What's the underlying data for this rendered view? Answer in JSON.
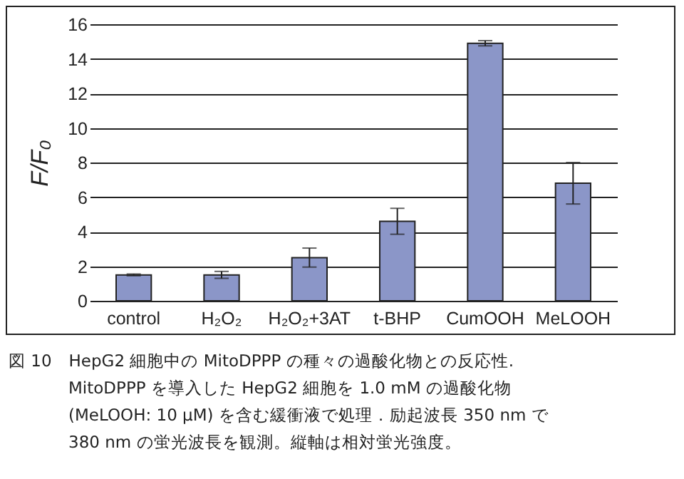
{
  "chart_data": {
    "type": "bar",
    "categories": [
      "control",
      "H₂O₂",
      "H₂O₂+3AT",
      "t-BHP",
      "CumOOH",
      "MeLOOH"
    ],
    "values": [
      1.5,
      1.5,
      2.5,
      4.6,
      14.9,
      6.8
    ],
    "errors": [
      0.05,
      0.2,
      0.55,
      0.75,
      0.15,
      1.2
    ],
    "color": "#8b96c8",
    "ylabel": "F/F₀",
    "ylim": [
      0,
      16
    ],
    "yticks": [
      0,
      2,
      4,
      6,
      8,
      10,
      12,
      14,
      16
    ],
    "grid": "y",
    "annotations": [
      "図 10　HepG2 細胞中の MitoDPPP の種々の過酸化物との反応性.",
      "MitoDPPP を導入した HepG2 細胞を 1.0 mM の過酸化物",
      "(MeLOOH: 10 μM) を含む緩衝液で処理．励起波長 350 nm で",
      "380 nm の蛍光波長を観測。縦軸は相対蛍光強度。"
    ]
  }
}
